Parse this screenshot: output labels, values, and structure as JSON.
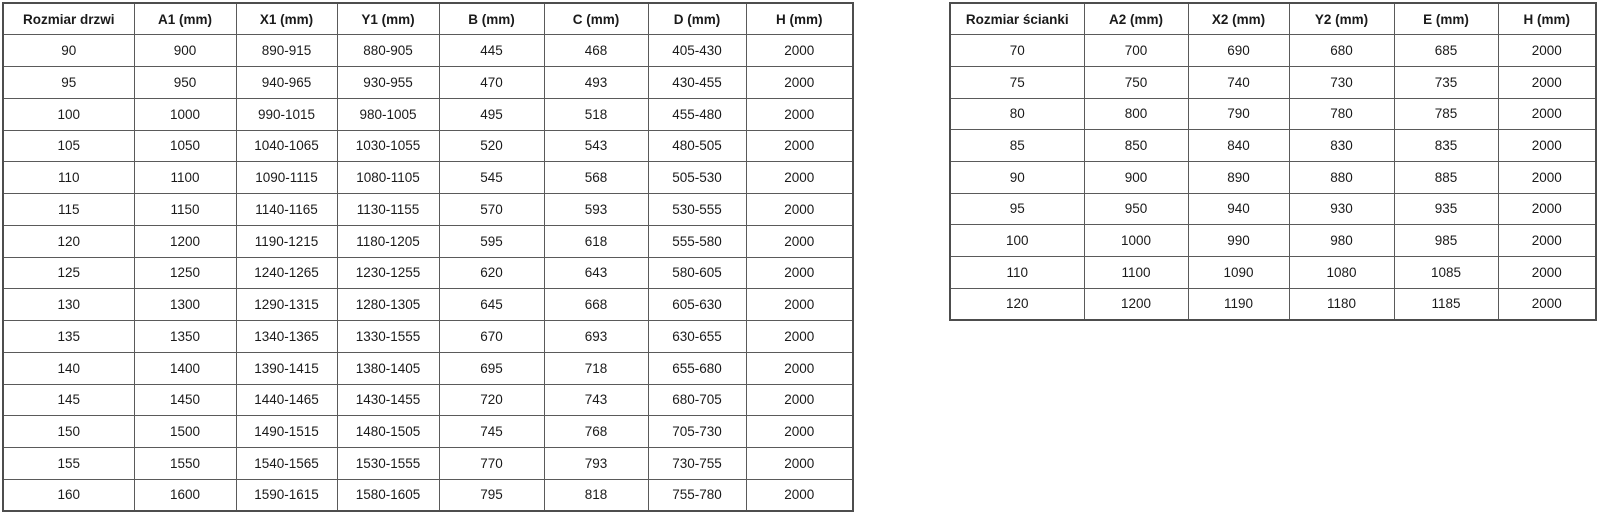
{
  "colors": {
    "background": "#ffffff",
    "border": "#5a5a5a",
    "text": "#1a1a1a"
  },
  "tables": [
    {
      "name": "door-dimensions",
      "headers": [
        "Rozmiar drzwi",
        "A1 (mm)",
        "X1 (mm)",
        "Y1 (mm)",
        "B (mm)",
        "C (mm)",
        "D (mm)",
        "H (mm)"
      ],
      "rows": [
        [
          "90",
          "900",
          "890-915",
          "880-905",
          "445",
          "468",
          "405-430",
          "2000"
        ],
        [
          "95",
          "950",
          "940-965",
          "930-955",
          "470",
          "493",
          "430-455",
          "2000"
        ],
        [
          "100",
          "1000",
          "990-1015",
          "980-1005",
          "495",
          "518",
          "455-480",
          "2000"
        ],
        [
          "105",
          "1050",
          "1040-1065",
          "1030-1055",
          "520",
          "543",
          "480-505",
          "2000"
        ],
        [
          "110",
          "1100",
          "1090-1115",
          "1080-1105",
          "545",
          "568",
          "505-530",
          "2000"
        ],
        [
          "115",
          "1150",
          "1140-1165",
          "1130-1155",
          "570",
          "593",
          "530-555",
          "2000"
        ],
        [
          "120",
          "1200",
          "1190-1215",
          "1180-1205",
          "595",
          "618",
          "555-580",
          "2000"
        ],
        [
          "125",
          "1250",
          "1240-1265",
          "1230-1255",
          "620",
          "643",
          "580-605",
          "2000"
        ],
        [
          "130",
          "1300",
          "1290-1315",
          "1280-1305",
          "645",
          "668",
          "605-630",
          "2000"
        ],
        [
          "135",
          "1350",
          "1340-1365",
          "1330-1555",
          "670",
          "693",
          "630-655",
          "2000"
        ],
        [
          "140",
          "1400",
          "1390-1415",
          "1380-1405",
          "695",
          "718",
          "655-680",
          "2000"
        ],
        [
          "145",
          "1450",
          "1440-1465",
          "1430-1455",
          "720",
          "743",
          "680-705",
          "2000"
        ],
        [
          "150",
          "1500",
          "1490-1515",
          "1480-1505",
          "745",
          "768",
          "705-730",
          "2000"
        ],
        [
          "155",
          "1550",
          "1540-1565",
          "1530-1555",
          "770",
          "793",
          "730-755",
          "2000"
        ],
        [
          "160",
          "1600",
          "1590-1615",
          "1580-1605",
          "795",
          "818",
          "755-780",
          "2000"
        ]
      ]
    },
    {
      "name": "wall-dimensions",
      "headers": [
        "Rozmiar ścianki",
        "A2 (mm)",
        "X2 (mm)",
        "Y2 (mm)",
        "E (mm)",
        "H (mm)"
      ],
      "rows": [
        [
          "70",
          "700",
          "690",
          "680",
          "685",
          "2000"
        ],
        [
          "75",
          "750",
          "740",
          "730",
          "735",
          "2000"
        ],
        [
          "80",
          "800",
          "790",
          "780",
          "785",
          "2000"
        ],
        [
          "85",
          "850",
          "840",
          "830",
          "835",
          "2000"
        ],
        [
          "90",
          "900",
          "890",
          "880",
          "885",
          "2000"
        ],
        [
          "95",
          "950",
          "940",
          "930",
          "935",
          "2000"
        ],
        [
          "100",
          "1000",
          "990",
          "980",
          "985",
          "2000"
        ],
        [
          "110",
          "1100",
          "1090",
          "1080",
          "1085",
          "2000"
        ],
        [
          "120",
          "1200",
          "1190",
          "1180",
          "1185",
          "2000"
        ]
      ]
    }
  ]
}
